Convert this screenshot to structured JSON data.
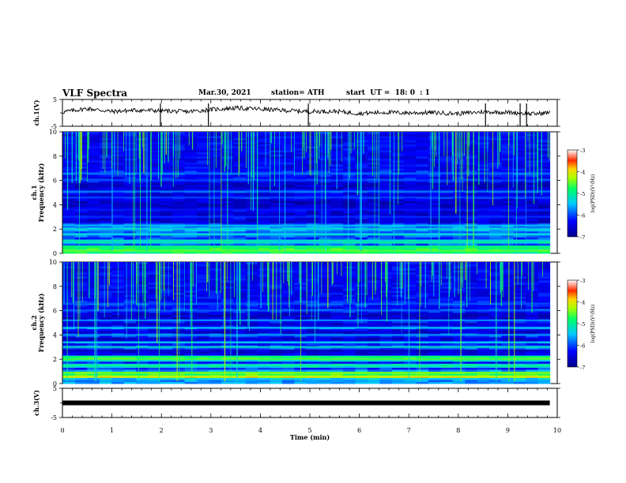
{
  "header": {
    "title": "VLF Spectra",
    "date": "Mar.30, 2021",
    "station": "station= ATH",
    "start": "start  UT =  18: 0  : 1"
  },
  "chart_data": [
    {
      "type": "line",
      "name": "ch.1 waveform",
      "ylabel": "ch.1(V)",
      "ylim": [
        -5,
        5
      ],
      "yticks": [
        "5",
        "-5"
      ],
      "xlim": [
        0,
        10
      ],
      "x": [
        0,
        0.5,
        1,
        1.5,
        2,
        2.5,
        3,
        3.5,
        4,
        4.5,
        5,
        5.5,
        6,
        6.5,
        7,
        7.5,
        8,
        8.5,
        9,
        9.5,
        9.85
      ],
      "y": [
        0.3,
        1.6,
        0.5,
        1.0,
        0.8,
        0.4,
        1.2,
        1.8,
        1.4,
        0.9,
        0.5,
        0.6,
        -0.2,
        0.2,
        0.0,
        0.1,
        -0.3,
        0.4,
        0.2,
        -0.4,
        0.1
      ],
      "spikes_x": [
        1.98,
        2.95,
        4.97,
        8.55,
        9.25,
        9.38
      ]
    },
    {
      "type": "heatmap",
      "name": "ch.1 spectrogram",
      "ylabel": "Frequency (kHz)",
      "channel": "ch.1",
      "ylim": [
        0,
        10
      ],
      "yticks": [
        "0",
        "2",
        "4",
        "6",
        "8",
        "10"
      ],
      "xlim": [
        0,
        10
      ],
      "colorbar": {
        "label": "log(PSD)(V²/Hz)",
        "range": [
          -7,
          -3
        ],
        "ticks": [
          "-3",
          "-4",
          "-5",
          "-6",
          "-7"
        ]
      },
      "bands_khz": [
        {
          "f": 0.2,
          "level": -4.6
        },
        {
          "f": 0.5,
          "level": -4.8
        },
        {
          "f": 1.0,
          "level": -5.2
        },
        {
          "f": 1.6,
          "level": -5.4
        },
        {
          "f": 2.0,
          "level": -5.3
        },
        {
          "f": 2.3,
          "level": -5.5
        },
        {
          "f": 3.0,
          "level": -6.1
        },
        {
          "f": 3.6,
          "level": -6.2
        },
        {
          "f": 4.6,
          "level": -6.0
        },
        {
          "f": 5.1,
          "level": -5.8
        },
        {
          "f": 6.0,
          "level": -6.0
        },
        {
          "f": 6.6,
          "level": -5.9
        }
      ]
    },
    {
      "type": "heatmap",
      "name": "ch.2 spectrogram",
      "ylabel": "Frequency (kHz)",
      "channel": "ch.2",
      "ylim": [
        0,
        10
      ],
      "yticks": [
        "0",
        "2",
        "4",
        "6",
        "8",
        "10"
      ],
      "xlim": [
        0,
        10
      ],
      "colorbar": {
        "label": "log(PSD)(V²/Hz)",
        "range": [
          -7,
          -3
        ],
        "ticks": [
          "-3",
          "-4",
          "-5",
          "-6",
          "-7"
        ]
      },
      "bands_khz": [
        {
          "f": 0.6,
          "level": -4.2
        },
        {
          "f": 0.9,
          "level": -4.5
        },
        {
          "f": 1.5,
          "level": -5.0
        },
        {
          "f": 2.0,
          "level": -4.6
        },
        {
          "f": 2.2,
          "level": -4.8
        },
        {
          "f": 3.0,
          "level": -5.2
        },
        {
          "f": 3.4,
          "level": -5.4
        },
        {
          "f": 4.0,
          "level": -5.6
        },
        {
          "f": 4.6,
          "level": -5.5
        },
        {
          "f": 5.2,
          "level": -5.7
        },
        {
          "f": 6.0,
          "level": -5.9
        },
        {
          "f": 6.6,
          "level": -6.0
        }
      ]
    },
    {
      "type": "line",
      "name": "ch.3 waveform",
      "ylabel": "ch.3(V)",
      "ylim": [
        -5,
        5
      ],
      "yticks": [
        "5",
        "-5"
      ],
      "xlim": [
        0,
        10
      ],
      "x": [
        0,
        9.85
      ],
      "y": [
        0,
        0
      ],
      "xlabel": "Time (min)",
      "xticks": [
        "0",
        "1",
        "2",
        "3",
        "4",
        "5",
        "6",
        "7",
        "8",
        "9",
        "10"
      ]
    }
  ]
}
